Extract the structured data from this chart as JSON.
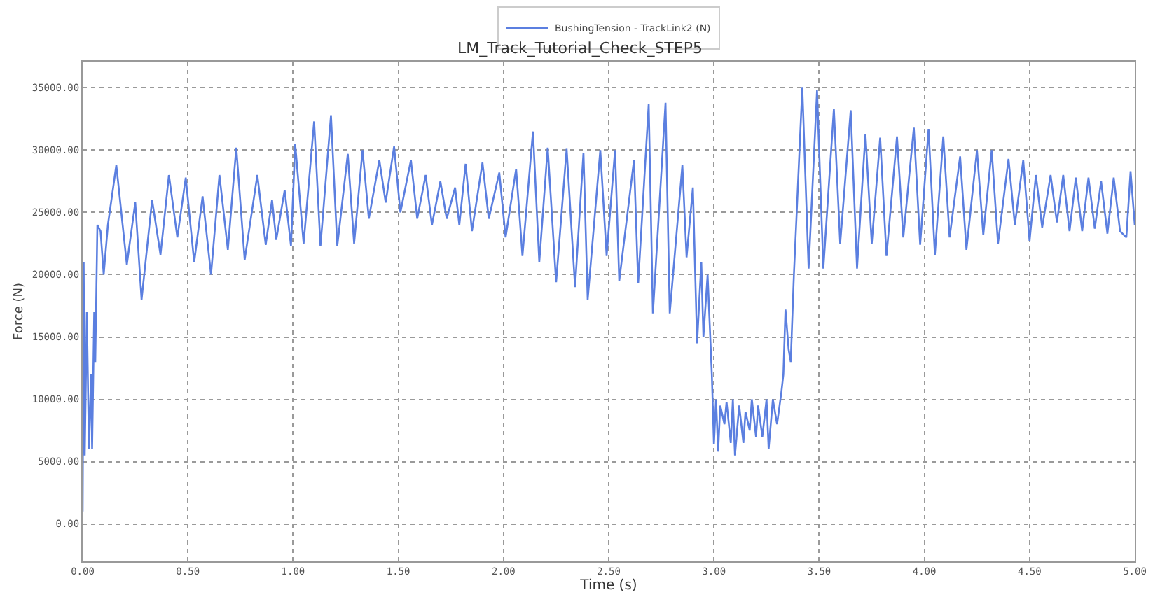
{
  "chart_data": {
    "type": "line",
    "title": "LM_Track_Tutorial_Check_STEP5",
    "xlabel": "Time (s)",
    "ylabel": "Force (N)",
    "xlim": [
      0,
      5
    ],
    "ylim": [
      -3000,
      37100
    ],
    "xticks": [
      {
        "value": 0,
        "label": "0.00"
      },
      {
        "value": 0.5,
        "label": "0.50"
      },
      {
        "value": 1,
        "label": "1.00"
      },
      {
        "value": 1.5,
        "label": "1.50"
      },
      {
        "value": 2,
        "label": "2.00"
      },
      {
        "value": 2.5,
        "label": "2.50"
      },
      {
        "value": 3,
        "label": "3.00"
      },
      {
        "value": 3.5,
        "label": "3.50"
      },
      {
        "value": 4,
        "label": "4.00"
      },
      {
        "value": 4.5,
        "label": "4.50"
      },
      {
        "value": 5,
        "label": "5.00"
      }
    ],
    "yticks": [
      {
        "value": 0,
        "label": "0.00"
      },
      {
        "value": 5000,
        "label": "5000.00"
      },
      {
        "value": 10000,
        "label": "10000.00"
      },
      {
        "value": 15000,
        "label": "15000.00"
      },
      {
        "value": 20000,
        "label": "20000.00"
      },
      {
        "value": 25000,
        "label": "25000.00"
      },
      {
        "value": 30000,
        "label": "30000.00"
      },
      {
        "value": 35000,
        "label": "35000.00"
      }
    ],
    "grid": true,
    "legend": "top",
    "marker": "none",
    "line_style": "solid",
    "series": [
      {
        "name": "BushingTension - TrackLink2 (N)",
        "color": "#5b7fe0",
        "x": [
          0.0,
          0.005,
          0.01,
          0.02,
          0.03,
          0.04,
          0.045,
          0.055,
          0.06,
          0.07,
          0.085,
          0.1,
          0.12,
          0.16,
          0.19,
          0.21,
          0.25,
          0.28,
          0.33,
          0.37,
          0.41,
          0.45,
          0.49,
          0.53,
          0.57,
          0.61,
          0.65,
          0.69,
          0.73,
          0.77,
          0.83,
          0.87,
          0.9,
          0.92,
          0.96,
          0.99,
          1.01,
          1.05,
          1.1,
          1.13,
          1.18,
          1.21,
          1.26,
          1.29,
          1.33,
          1.36,
          1.41,
          1.44,
          1.48,
          1.51,
          1.56,
          1.59,
          1.63,
          1.66,
          1.7,
          1.73,
          1.77,
          1.79,
          1.82,
          1.85,
          1.9,
          1.93,
          1.98,
          2.01,
          2.06,
          2.09,
          2.14,
          2.17,
          2.21,
          2.25,
          2.3,
          2.34,
          2.38,
          2.4,
          2.46,
          2.49,
          2.53,
          2.55,
          2.62,
          2.64,
          2.69,
          2.71,
          2.77,
          2.79,
          2.85,
          2.87,
          2.9,
          2.92,
          2.94,
          2.95,
          2.97,
          2.99,
          3.0,
          3.01,
          3.02,
          3.03,
          3.05,
          3.06,
          3.08,
          3.09,
          3.1,
          3.12,
          3.14,
          3.15,
          3.17,
          3.18,
          3.2,
          3.21,
          3.23,
          3.25,
          3.26,
          3.28,
          3.3,
          3.32,
          3.33,
          3.34,
          3.355,
          3.365,
          3.38,
          3.42,
          3.45,
          3.49,
          3.52,
          3.57,
          3.6,
          3.65,
          3.68,
          3.72,
          3.75,
          3.79,
          3.82,
          3.87,
          3.9,
          3.95,
          3.98,
          4.02,
          4.05,
          4.09,
          4.12,
          4.17,
          4.2,
          4.25,
          4.28,
          4.32,
          4.35,
          4.4,
          4.43,
          4.47,
          4.5,
          4.53,
          4.56,
          4.6,
          4.63,
          4.66,
          4.69,
          4.72,
          4.75,
          4.78,
          4.81,
          4.84,
          4.87,
          4.9,
          4.93,
          4.96,
          4.98,
          5.0
        ],
        "values": [
          1000,
          21000,
          5500,
          17000,
          6000,
          12000,
          6000,
          17000,
          13000,
          24000,
          23500,
          20000,
          24000,
          28800,
          24000,
          20800,
          25800,
          18000,
          26000,
          21600,
          28000,
          23000,
          27800,
          21000,
          26300,
          20000,
          28000,
          22000,
          30200,
          21200,
          28000,
          22400,
          26000,
          22800,
          26800,
          22300,
          30500,
          22500,
          32300,
          22300,
          32800,
          22300,
          29700,
          22500,
          30000,
          24500,
          29200,
          25800,
          30300,
          25000,
          29200,
          24500,
          28000,
          24000,
          27500,
          24500,
          27000,
          24000,
          28900,
          23500,
          29000,
          24500,
          28200,
          23000,
          28500,
          21500,
          31500,
          21000,
          30200,
          19400,
          30100,
          19000,
          29800,
          18000,
          30000,
          21500,
          30000,
          19500,
          29200,
          19300,
          33700,
          16900,
          33800,
          16900,
          28800,
          21400,
          27000,
          14500,
          21000,
          15000,
          20000,
          12000,
          6400,
          10000,
          5800,
          9500,
          8000,
          9800,
          6500,
          10000,
          5500,
          9500,
          6500,
          9000,
          7500,
          10000,
          7000,
          9500,
          7000,
          10000,
          6000,
          10000,
          8000,
          10500,
          12000,
          17200,
          14000,
          13000,
          20000,
          35000,
          20500,
          34800,
          20500,
          33300,
          22500,
          33200,
          20500,
          31300,
          22500,
          31000,
          21500,
          31100,
          23000,
          31800,
          22400,
          31700,
          21600,
          31100,
          23000,
          29500,
          22000,
          30000,
          23200,
          30000,
          22500,
          29300,
          24000,
          29200,
          22700,
          28000,
          23800,
          28000,
          24200,
          28000,
          23500,
          27800,
          23500,
          27800,
          23700,
          27500,
          23300,
          27800,
          23500,
          23000,
          28300,
          24000
        ]
      }
    ]
  }
}
